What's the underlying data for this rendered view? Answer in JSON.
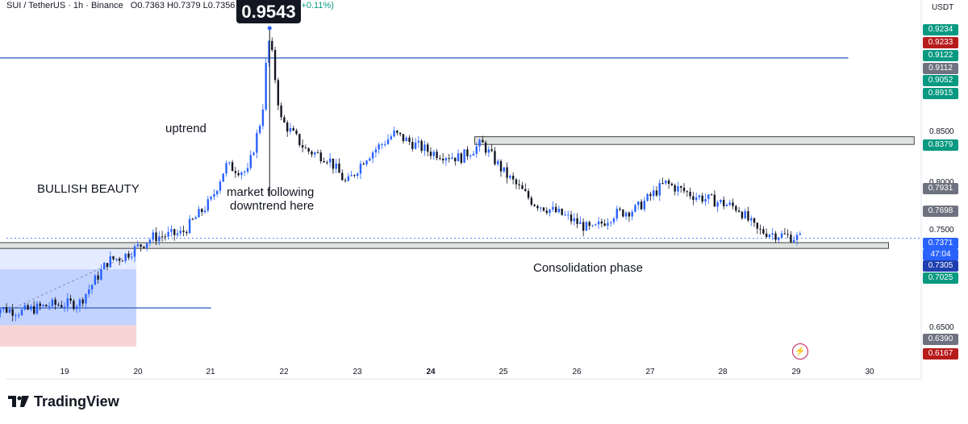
{
  "header": {
    "symbol_line": "SUI / TetherUS · 1h · Binance",
    "ohlc": "O0.7363 H0.7379 L0.7356",
    "change": "08 (+0.11%)",
    "currency": "USDT"
  },
  "price_popup": "0.9543",
  "annotations": {
    "uptrend": "uptrend",
    "bullish": "BULLISH BEAUTY",
    "market_following_1": "market following",
    "market_following_2": "downtrend here",
    "consolidation": "Consolidation phase"
  },
  "brand": "TradingView",
  "colors": {
    "up": "#2962ff",
    "down": "#131722",
    "accent_line": "#4a74c9",
    "tag_green": "#089981",
    "tag_red": "#b71c1c",
    "tag_gray": "#6e7280",
    "tag_blue": "#2962ff"
  },
  "chart_data": {
    "type": "candlestick",
    "timeframe": "1h",
    "x_ticks": [
      "19",
      "20",
      "21",
      "22",
      "23",
      "24",
      "25",
      "26",
      "27",
      "28",
      "29",
      "30"
    ],
    "y_axis_ticks": [
      "0.8500",
      "0.8000",
      "0.7500",
      "0.6500"
    ],
    "ylim": [
      0.6,
      0.97
    ],
    "price_tags": [
      {
        "text": "0.9234",
        "color": "#089981"
      },
      {
        "text": "0.9233",
        "color": "#b71c1c"
      },
      {
        "text": "0.9122",
        "color": "#089981"
      },
      {
        "text": "0.9112",
        "color": "#6e7280"
      },
      {
        "text": "0.9052",
        "color": "#089981"
      },
      {
        "text": "0.8915",
        "color": "#089981"
      },
      {
        "text": "0.8379",
        "color": "#089981"
      },
      {
        "text": "0.7931",
        "color": "#6e7280"
      },
      {
        "text": "0.7698",
        "color": "#6e7280"
      },
      {
        "text": "0.7371",
        "color": "#2962ff"
      },
      {
        "text": "47:04",
        "color": "#2962ff"
      },
      {
        "text": "0.7305",
        "color": "#1e3fae"
      },
      {
        "text": "0.7025",
        "color": "#089981"
      },
      {
        "text": "0.6390",
        "color": "#6e7280"
      },
      {
        "text": "0.6167",
        "color": "#b71c1c"
      }
    ],
    "horizontal_lines": [
      {
        "price": 0.9234,
        "from_day": 18.0,
        "to_day": 29.7
      },
      {
        "price": 0.665,
        "from_day": 18.0,
        "to_day": 21.0
      }
    ],
    "zones": [
      {
        "name": "resistance",
        "from_day": 24.6,
        "to_day": 30.6,
        "top": 0.842,
        "bottom": 0.834
      },
      {
        "name": "support",
        "from_day": 18.0,
        "to_day": 30.25,
        "top": 0.7325,
        "bottom": 0.7265
      }
    ],
    "path_days": [
      18.0,
      18.4,
      18.8,
      19.2,
      19.6,
      19.8,
      20.2,
      20.6,
      21.0,
      21.2,
      21.5,
      21.7,
      21.75,
      21.8,
      21.95,
      22.3,
      22.6,
      22.85,
      23.1,
      23.5,
      23.7,
      24.0,
      24.4,
      24.7,
      25.0,
      25.4,
      25.8,
      26.2,
      26.5,
      26.8,
      27.2,
      27.6,
      27.9,
      28.2,
      28.45,
      28.8,
      29.05
    ],
    "path_prices": [
      0.666,
      0.661,
      0.668,
      0.67,
      0.714,
      0.718,
      0.738,
      0.742,
      0.776,
      0.812,
      0.805,
      0.866,
      0.915,
      0.945,
      0.86,
      0.828,
      0.82,
      0.793,
      0.82,
      0.845,
      0.837,
      0.826,
      0.82,
      0.835,
      0.805,
      0.774,
      0.761,
      0.745,
      0.762,
      0.767,
      0.794,
      0.781,
      0.775,
      0.768,
      0.745,
      0.74,
      0.7371
    ]
  }
}
